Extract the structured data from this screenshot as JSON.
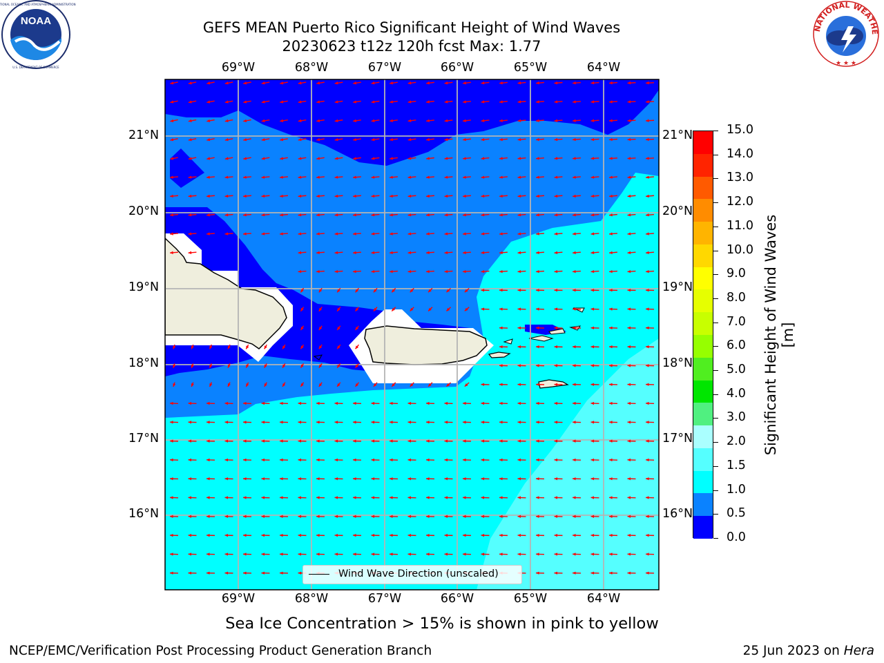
{
  "header": {
    "title_line1": "GEFS MEAN Puerto Rico Significant Height of Wind Waves",
    "title_line2": "20230623 t12z 120h fcst   Max: 1.77"
  },
  "logos": {
    "left": {
      "name": "noaa-logo",
      "text": "NOAA",
      "ring_text": "NATIONAL OCEANIC AND ATMOSPHERIC ADMINISTRATION · U.S. DEPARTMENT OF COMMERCE"
    },
    "right": {
      "name": "nws-logo",
      "ring_text": "NATIONAL WEATHER SERVICE"
    }
  },
  "map": {
    "lon_labels": [
      "69°W",
      "68°W",
      "67°W",
      "66°W",
      "65°W",
      "64°W"
    ],
    "lat_labels": [
      "21°N",
      "20°N",
      "19°N",
      "18°N",
      "17°N",
      "16°N"
    ],
    "legend_label": "Wind Wave Direction (unscaled)",
    "arrow_color": "#ff0000"
  },
  "colorbar": {
    "title": "Significant Height of Wind Waves [m]",
    "ticks": [
      "15.0",
      "14.0",
      "13.0",
      "12.0",
      "11.0",
      "10.0",
      "9.0",
      "8.0",
      "7.0",
      "6.0",
      "5.0",
      "4.0",
      "3.0",
      "2.0",
      "1.5",
      "1.0",
      "0.5",
      "0.0"
    ],
    "colors": [
      "#ff0000",
      "#ff2400",
      "#ff5a00",
      "#ff8c00",
      "#ffb400",
      "#ffd800",
      "#ffff00",
      "#e6ff00",
      "#c8ff00",
      "#96ff00",
      "#50ee20",
      "#00e600",
      "#50f080",
      "#aaffff",
      "#55ffff",
      "#00ffff",
      "#0a82ff",
      "#0000ff"
    ]
  },
  "subnote": "Sea Ice Concentration > 15% is shown in pink to yellow",
  "footer": {
    "left": "NCEP/EMC/Verification Post Processing Product Generation Branch",
    "right_date": "25 Jun 2023 on ",
    "right_host": "Hera"
  }
}
